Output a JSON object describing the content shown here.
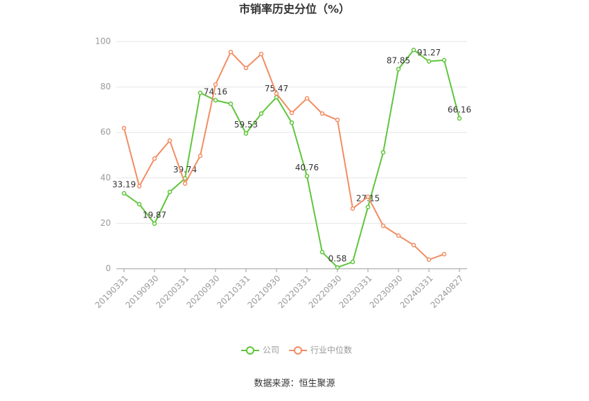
{
  "chart_data": {
    "type": "line",
    "title": "市销率历史分位（%）",
    "categories": [
      "20190331",
      null,
      "20190930",
      null,
      "20200331",
      null,
      "20200930",
      null,
      "20210331",
      null,
      "20210930",
      null,
      "20220331",
      null,
      "20220930",
      null,
      "20230331",
      null,
      "20230930",
      null,
      "20240331",
      null,
      "20240827"
    ],
    "series": [
      {
        "name": "公司",
        "color": "#5ec53a",
        "values": [
          33.19,
          28.4,
          19.87,
          33.8,
          39.74,
          77.4,
          74.16,
          72.6,
          59.53,
          68.3,
          75.47,
          64.3,
          40.76,
          7.3,
          0.58,
          3.0,
          27.15,
          51.2,
          87.85,
          96.3,
          91.27,
          91.8,
          66.16
        ],
        "value_labels": [
          "33.19",
          null,
          "19.87",
          null,
          "39.74",
          null,
          "74.16",
          null,
          "59.53",
          null,
          "75.47",
          null,
          "40.76",
          null,
          "0.58",
          null,
          "27.15",
          null,
          "87.85",
          null,
          "91.27",
          null,
          "66.16"
        ]
      },
      {
        "name": "行业中位数",
        "color": "#f28c62",
        "values": [
          61.9,
          36.3,
          48.5,
          56.4,
          37.5,
          49.7,
          81.1,
          95.4,
          88.4,
          94.5,
          77.1,
          68.6,
          75.0,
          68.3,
          65.5,
          26.5,
          31.7,
          18.9,
          14.6,
          10.4,
          4.0,
          6.4,
          null
        ]
      }
    ],
    "ylim": [
      0,
      100
    ],
    "yticks": [
      0,
      20,
      40,
      60,
      80,
      100
    ],
    "grid": true,
    "source": "数据来源：恒生聚源"
  }
}
